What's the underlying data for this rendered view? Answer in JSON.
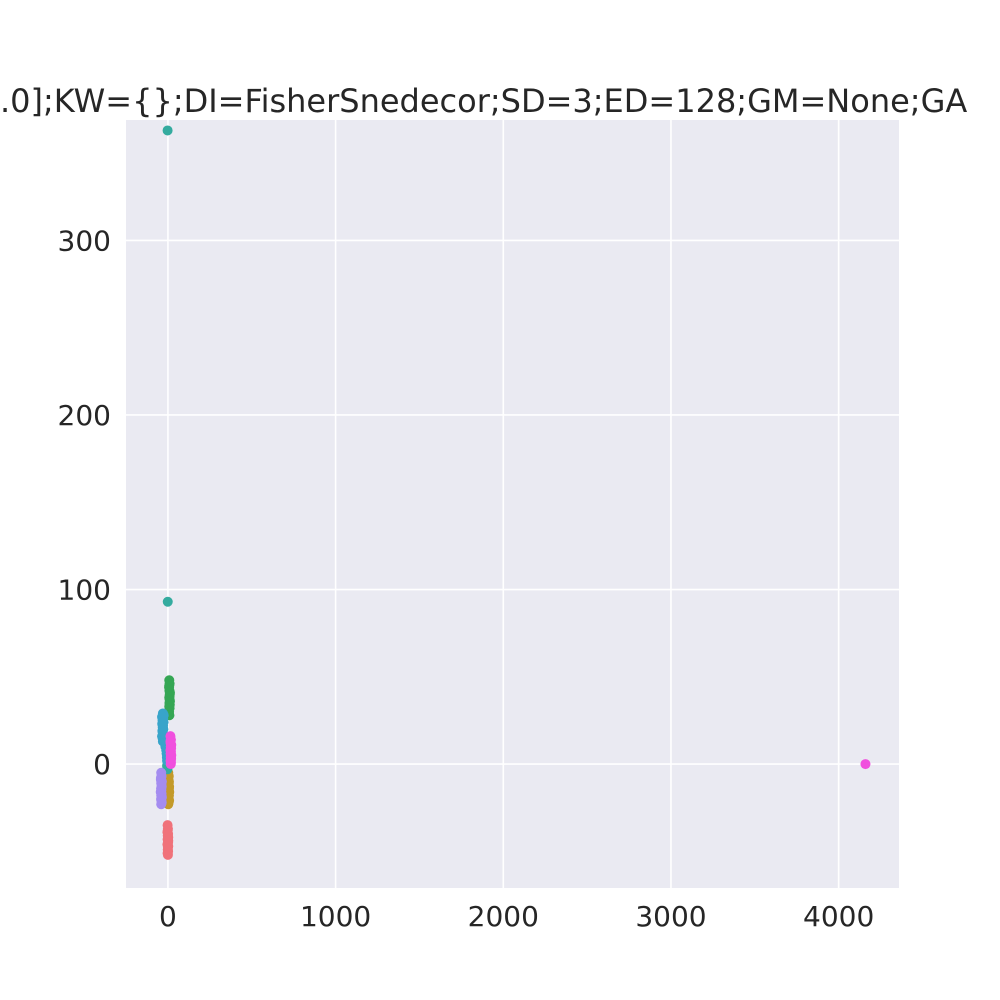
{
  "chart_data": {
    "type": "scatter",
    "title": ".0];KW={};DI=FisherSnedecor;SD=3;ED=128;GM=None;GA",
    "xlabel": "",
    "ylabel": "",
    "xlim": [
      -250,
      4360
    ],
    "ylim": [
      -71,
      369
    ],
    "x_ticks": [
      0,
      1000,
      2000,
      3000,
      4000
    ],
    "y_ticks": [
      0,
      100,
      200,
      300
    ],
    "x_tick_labels": [
      "0",
      "1000",
      "2000",
      "3000",
      "4000"
    ],
    "y_tick_labels": [
      "0",
      "100",
      "200",
      "300"
    ],
    "grid": true,
    "series": [
      {
        "color": "#f0727a",
        "points": [
          [
            -2,
            -35
          ],
          [
            0,
            -37
          ],
          [
            -3,
            -39
          ],
          [
            1,
            -40
          ],
          [
            -1,
            -41
          ],
          [
            2,
            -42
          ],
          [
            -2,
            -43
          ],
          [
            0,
            -44
          ],
          [
            1,
            -45
          ],
          [
            -3,
            -46
          ],
          [
            2,
            -47
          ],
          [
            0,
            -48
          ],
          [
            -1,
            -49
          ],
          [
            1,
            -50
          ],
          [
            -2,
            -51
          ],
          [
            0,
            -52
          ],
          [
            2,
            -44
          ],
          [
            -1,
            -38
          ]
        ]
      },
      {
        "color": "#c39a2a",
        "points": [
          [
            2,
            -5
          ],
          [
            5,
            -7
          ],
          [
            3,
            -9
          ],
          [
            6,
            -10
          ],
          [
            4,
            -12
          ],
          [
            7,
            -13
          ],
          [
            3,
            -14
          ],
          [
            5,
            -15
          ],
          [
            8,
            -16
          ],
          [
            4,
            -17
          ],
          [
            6,
            -18
          ],
          [
            3,
            -19
          ],
          [
            5,
            -20
          ],
          [
            7,
            -21
          ],
          [
            4,
            -22
          ],
          [
            2,
            -23
          ],
          [
            6,
            -14
          ],
          [
            5,
            -11
          ]
        ]
      },
      {
        "color": "#35a654",
        "points": [
          [
            8,
            48
          ],
          [
            10,
            46
          ],
          [
            7,
            44
          ],
          [
            9,
            42
          ],
          [
            11,
            40
          ],
          [
            8,
            38
          ],
          [
            10,
            37
          ],
          [
            12,
            36
          ],
          [
            9,
            35
          ],
          [
            11,
            34
          ],
          [
            8,
            33
          ],
          [
            10,
            32
          ],
          [
            7,
            30
          ],
          [
            9,
            28
          ],
          [
            10,
            39
          ],
          [
            12,
            41
          ],
          [
            8,
            45
          ]
        ]
      },
      {
        "color": "#34ab9f",
        "points": [
          [
            -2,
            363
          ],
          [
            -1,
            93
          ],
          [
            -4,
            3
          ],
          [
            -2,
            1
          ],
          [
            -5,
            -1
          ],
          [
            -3,
            -3
          ]
        ]
      },
      {
        "color": "#38a4ca",
        "points": [
          [
            -30,
            29
          ],
          [
            -25,
            28
          ],
          [
            -35,
            27
          ],
          [
            -28,
            26
          ],
          [
            -32,
            25
          ],
          [
            -26,
            24
          ],
          [
            -34,
            23
          ],
          [
            -29,
            22
          ],
          [
            -31,
            21
          ],
          [
            -27,
            20
          ],
          [
            -33,
            19
          ],
          [
            -30,
            18
          ],
          [
            -28,
            17
          ],
          [
            -35,
            16
          ],
          [
            -32,
            15
          ],
          [
            -26,
            14
          ],
          [
            -30,
            13
          ],
          [
            -20,
            12
          ],
          [
            -15,
            10
          ],
          [
            -10,
            8
          ],
          [
            -8,
            6
          ],
          [
            -6,
            4
          ],
          [
            -5,
            2
          ]
        ]
      },
      {
        "color": "#a48cf0",
        "points": [
          [
            -40,
            -5
          ],
          [
            -38,
            -7
          ],
          [
            -42,
            -8
          ],
          [
            -36,
            -10
          ],
          [
            -40,
            -11
          ],
          [
            -37,
            -13
          ],
          [
            -41,
            -14
          ],
          [
            -39,
            -15
          ],
          [
            -43,
            -16
          ],
          [
            -38,
            -17
          ],
          [
            -40,
            -18
          ],
          [
            -36,
            -19
          ],
          [
            -41,
            -20
          ],
          [
            -39,
            -21
          ],
          [
            -37,
            -22
          ],
          [
            -40,
            -23
          ],
          [
            -38,
            -12
          ],
          [
            -42,
            -9
          ]
        ]
      },
      {
        "color": "#f050de",
        "points": [
          [
            15,
            16
          ],
          [
            18,
            14
          ],
          [
            16,
            12
          ],
          [
            20,
            11
          ],
          [
            17,
            10
          ],
          [
            19,
            9
          ],
          [
            15,
            8
          ],
          [
            18,
            7
          ],
          [
            16,
            6
          ],
          [
            20,
            5
          ],
          [
            17,
            4
          ],
          [
            19,
            3
          ],
          [
            16,
            2
          ],
          [
            18,
            1
          ],
          [
            17,
            0
          ],
          [
            15,
            13
          ],
          [
            4160,
            0
          ]
        ]
      }
    ]
  }
}
